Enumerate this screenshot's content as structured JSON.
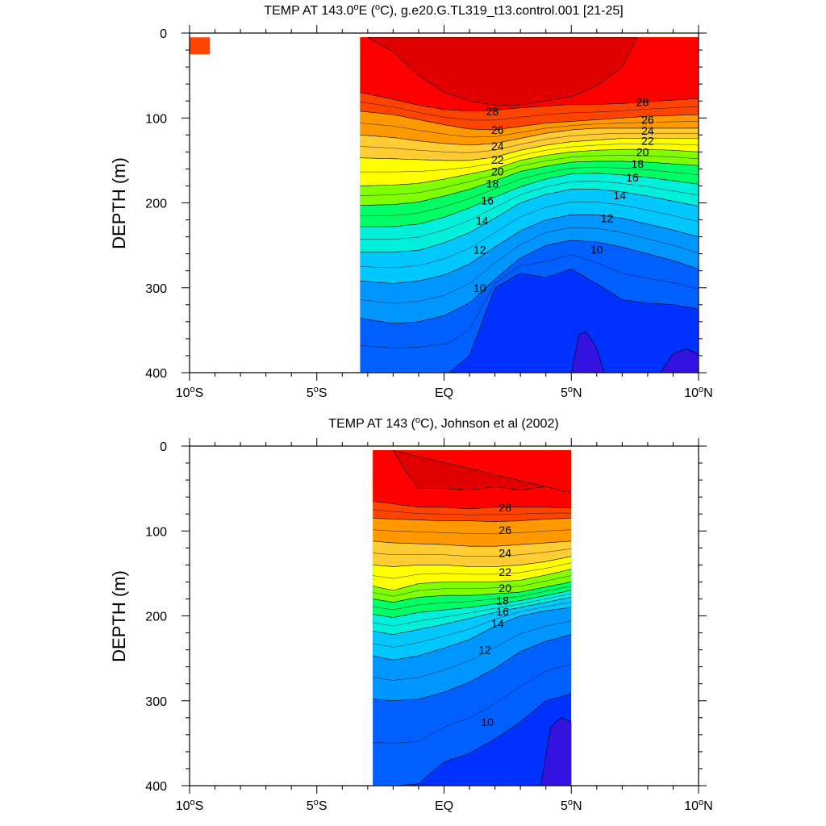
{
  "chart_data": [
    {
      "type": "contour",
      "title_prefix": "TEMP AT 143.0",
      "title_unit_o": "o",
      "title_mid": "E (",
      "title_c_o": "o",
      "title_suffix": "C), g.e20.G.TL319_t13.control.001 [21-25]",
      "ylabel": "DEPTH (m)",
      "ylim": [
        0,
        400
      ],
      "y_reversed": true,
      "xlim": [
        -10,
        10
      ],
      "x_ticks": [
        {
          "v": -10,
          "num": "10",
          "sup": "o",
          "hemi": "S"
        },
        {
          "v": -5,
          "num": "5",
          "sup": "o",
          "hemi": "S"
        },
        {
          "v": 0,
          "num": "EQ",
          "sup": "",
          "hemi": ""
        },
        {
          "v": 5,
          "num": "5",
          "sup": "o",
          "hemi": "N"
        },
        {
          "v": 10,
          "num": "10",
          "sup": "o",
          "hemi": "N"
        }
      ],
      "y_ticks": [
        "0",
        "100",
        "200",
        "300",
        "400"
      ],
      "data_x_range": [
        -3.3,
        10
      ],
      "contour_levels": [
        8,
        10,
        12,
        14,
        16,
        18,
        20,
        22,
        24,
        26,
        28
      ],
      "contour_labels": [
        {
          "text": "28",
          "x": 1.9,
          "y": 92
        },
        {
          "text": "26",
          "x": 2.1,
          "y": 114
        },
        {
          "text": "24",
          "x": 2.1,
          "y": 133
        },
        {
          "text": "22",
          "x": 2.1,
          "y": 149
        },
        {
          "text": "20",
          "x": 2.1,
          "y": 163
        },
        {
          "text": "18",
          "x": 1.9,
          "y": 177
        },
        {
          "text": "16",
          "x": 1.7,
          "y": 197
        },
        {
          "text": "14",
          "x": 1.5,
          "y": 221
        },
        {
          "text": "12",
          "x": 1.4,
          "y": 255
        },
        {
          "text": "10",
          "x": 1.4,
          "y": 300
        },
        {
          "text": "28",
          "x": 7.8,
          "y": 81
        },
        {
          "text": "26",
          "x": 8.0,
          "y": 102
        },
        {
          "text": "24",
          "x": 8.0,
          "y": 115
        },
        {
          "text": "22",
          "x": 8.0,
          "y": 127
        },
        {
          "text": "20",
          "x": 7.8,
          "y": 140
        },
        {
          "text": "18",
          "x": 7.6,
          "y": 154
        },
        {
          "text": "16",
          "x": 7.4,
          "y": 170
        },
        {
          "text": "14",
          "x": 6.9,
          "y": 191
        },
        {
          "text": "12",
          "x": 6.4,
          "y": 218
        },
        {
          "text": "10",
          "x": 6.0,
          "y": 255
        }
      ],
      "isotherm_depths": {
        "x": [
          -3.3,
          -2,
          -1,
          0,
          1,
          2,
          3,
          4,
          5,
          6,
          7,
          8,
          9,
          10
        ],
        "28": [
          70,
          78,
          85,
          90,
          92,
          91,
          88,
          86,
          84,
          84,
          83,
          81,
          79,
          77
        ],
        "26": [
          92,
          96,
          102,
          108,
          113,
          114,
          110,
          106,
          104,
          102,
          100,
          98,
          97,
          96
        ],
        "24": [
          120,
          123,
          127,
          130,
          132,
          130,
          124,
          118,
          114,
          112,
          112,
          112,
          112,
          112
        ],
        "22": [
          147,
          148,
          149,
          150,
          150,
          146,
          138,
          132,
          128,
          126,
          124,
          124,
          124,
          124
        ],
        "20": [
          180,
          179,
          177,
          172,
          166,
          160,
          150,
          144,
          140,
          138,
          137,
          137,
          138,
          140
        ],
        "18": [
          203,
          202,
          199,
          192,
          184,
          174,
          163,
          157,
          152,
          151,
          151,
          152,
          154,
          156
        ],
        "16": [
          228,
          228,
          225,
          217,
          206,
          193,
          181,
          172,
          166,
          165,
          167,
          170,
          174,
          178
        ],
        "14": [
          258,
          258,
          256,
          247,
          235,
          218,
          200,
          190,
          184,
          184,
          187,
          192,
          198,
          204
        ],
        "12": [
          292,
          295,
          292,
          285,
          272,
          252,
          233,
          220,
          214,
          214,
          218,
          225,
          232,
          240
        ],
        "10": [
          336,
          342,
          340,
          333,
          318,
          290,
          265,
          250,
          244,
          246,
          252,
          260,
          268,
          278
        ],
        "8": [
          408,
          410,
          410,
          405,
          380,
          300,
          283,
          288,
          278,
          295,
          314,
          318,
          320,
          325
        ]
      },
      "warm_core_28_5": {
        "x": [
          -3.0,
          -2,
          -1,
          0,
          1,
          2,
          3,
          4,
          5,
          6,
          7,
          7.6
        ],
        "depth": [
          5,
          22,
          50,
          70,
          80,
          85,
          85,
          80,
          75,
          62,
          40,
          5
        ]
      },
      "cold_pools_below_8": [
        {
          "x": [
            5.0,
            5.3,
            5.6,
            6.0,
            6.3
          ],
          "depth": [
            400,
            355,
            352,
            372,
            400
          ]
        },
        {
          "x": [
            8.5,
            9.0,
            9.5,
            10.0
          ],
          "depth": [
            400,
            378,
            372,
            378
          ]
        }
      ],
      "isolated_patch": {
        "x": [
          -10,
          -9.2
        ],
        "depth": [
          5,
          25
        ],
        "value": 27
      }
    },
    {
      "type": "contour",
      "title_prefix": "TEMP AT 143 (",
      "title_c_o": "o",
      "title_suffix": "C), Johnson et al (2002)",
      "ylabel": "DEPTH (m)",
      "ylim": [
        0,
        400
      ],
      "y_reversed": true,
      "xlim": [
        -10,
        10
      ],
      "x_ticks": [
        {
          "v": -10,
          "num": "10",
          "sup": "o",
          "hemi": "S"
        },
        {
          "v": -5,
          "num": "5",
          "sup": "o",
          "hemi": "S"
        },
        {
          "v": 0,
          "num": "EQ",
          "sup": "",
          "hemi": ""
        },
        {
          "v": 5,
          "num": "5",
          "sup": "o",
          "hemi": "N"
        },
        {
          "v": 10,
          "num": "10",
          "sup": "o",
          "hemi": "N"
        }
      ],
      "y_ticks": [
        "0",
        "100",
        "200",
        "300",
        "400"
      ],
      "data_x_range": [
        -2.8,
        5
      ],
      "contour_levels": [
        8,
        10,
        12,
        14,
        16,
        18,
        20,
        22,
        24,
        26,
        28
      ],
      "contour_labels": [
        {
          "text": "28",
          "x": 2.4,
          "y": 72
        },
        {
          "text": "26",
          "x": 2.4,
          "y": 99
        },
        {
          "text": "24",
          "x": 2.4,
          "y": 126
        },
        {
          "text": "22",
          "x": 2.4,
          "y": 148
        },
        {
          "text": "20",
          "x": 2.4,
          "y": 167
        },
        {
          "text": "18",
          "x": 2.3,
          "y": 182
        },
        {
          "text": "16",
          "x": 2.3,
          "y": 195
        },
        {
          "text": "14",
          "x": 2.1,
          "y": 209
        },
        {
          "text": "12",
          "x": 1.6,
          "y": 240
        },
        {
          "text": "10",
          "x": 1.7,
          "y": 325
        }
      ],
      "isotherm_depths": {
        "x": [
          -2.8,
          -2,
          -1,
          0,
          1,
          2,
          3,
          4,
          5
        ],
        "28": [
          65,
          68,
          72,
          72,
          74,
          72,
          72,
          72,
          73
        ],
        "26": [
          85,
          86,
          87,
          88,
          88,
          89,
          88,
          86,
          85
        ],
        "24": [
          112,
          114,
          115,
          116,
          118,
          118,
          116,
          114,
          112
        ],
        "22": [
          140,
          142,
          140,
          140,
          142,
          142,
          140,
          136,
          130
        ],
        "20": [
          165,
          170,
          162,
          160,
          160,
          160,
          158,
          152,
          145
        ],
        "18": [
          180,
          184,
          178,
          176,
          176,
          174,
          172,
          166,
          160
        ],
        "16": [
          198,
          202,
          196,
          193,
          190,
          186,
          182,
          176,
          170
        ],
        "14": [
          218,
          222,
          216,
          210,
          203,
          196,
          190,
          184,
          178
        ],
        "12": [
          247,
          252,
          247,
          238,
          228,
          212,
          200,
          194,
          190
        ],
        "10": [
          298,
          300,
          298,
          290,
          278,
          262,
          242,
          230,
          222
        ],
        "8": [
          400,
          400,
          398,
          372,
          362,
          345,
          325,
          300,
          292
        ]
      },
      "warm_core_28_5": {
        "x": [
          -2.0,
          -1.5,
          -1,
          0,
          1,
          2,
          3,
          4,
          5
        ],
        "depth": [
          5,
          30,
          50,
          50,
          52,
          48,
          52,
          48,
          55
        ]
      },
      "cold_pools_below_8": [
        {
          "x": [
            3.8,
            4.2,
            4.6,
            5.0
          ],
          "depth": [
            400,
            330,
            320,
            325
          ]
        }
      ]
    }
  ]
}
